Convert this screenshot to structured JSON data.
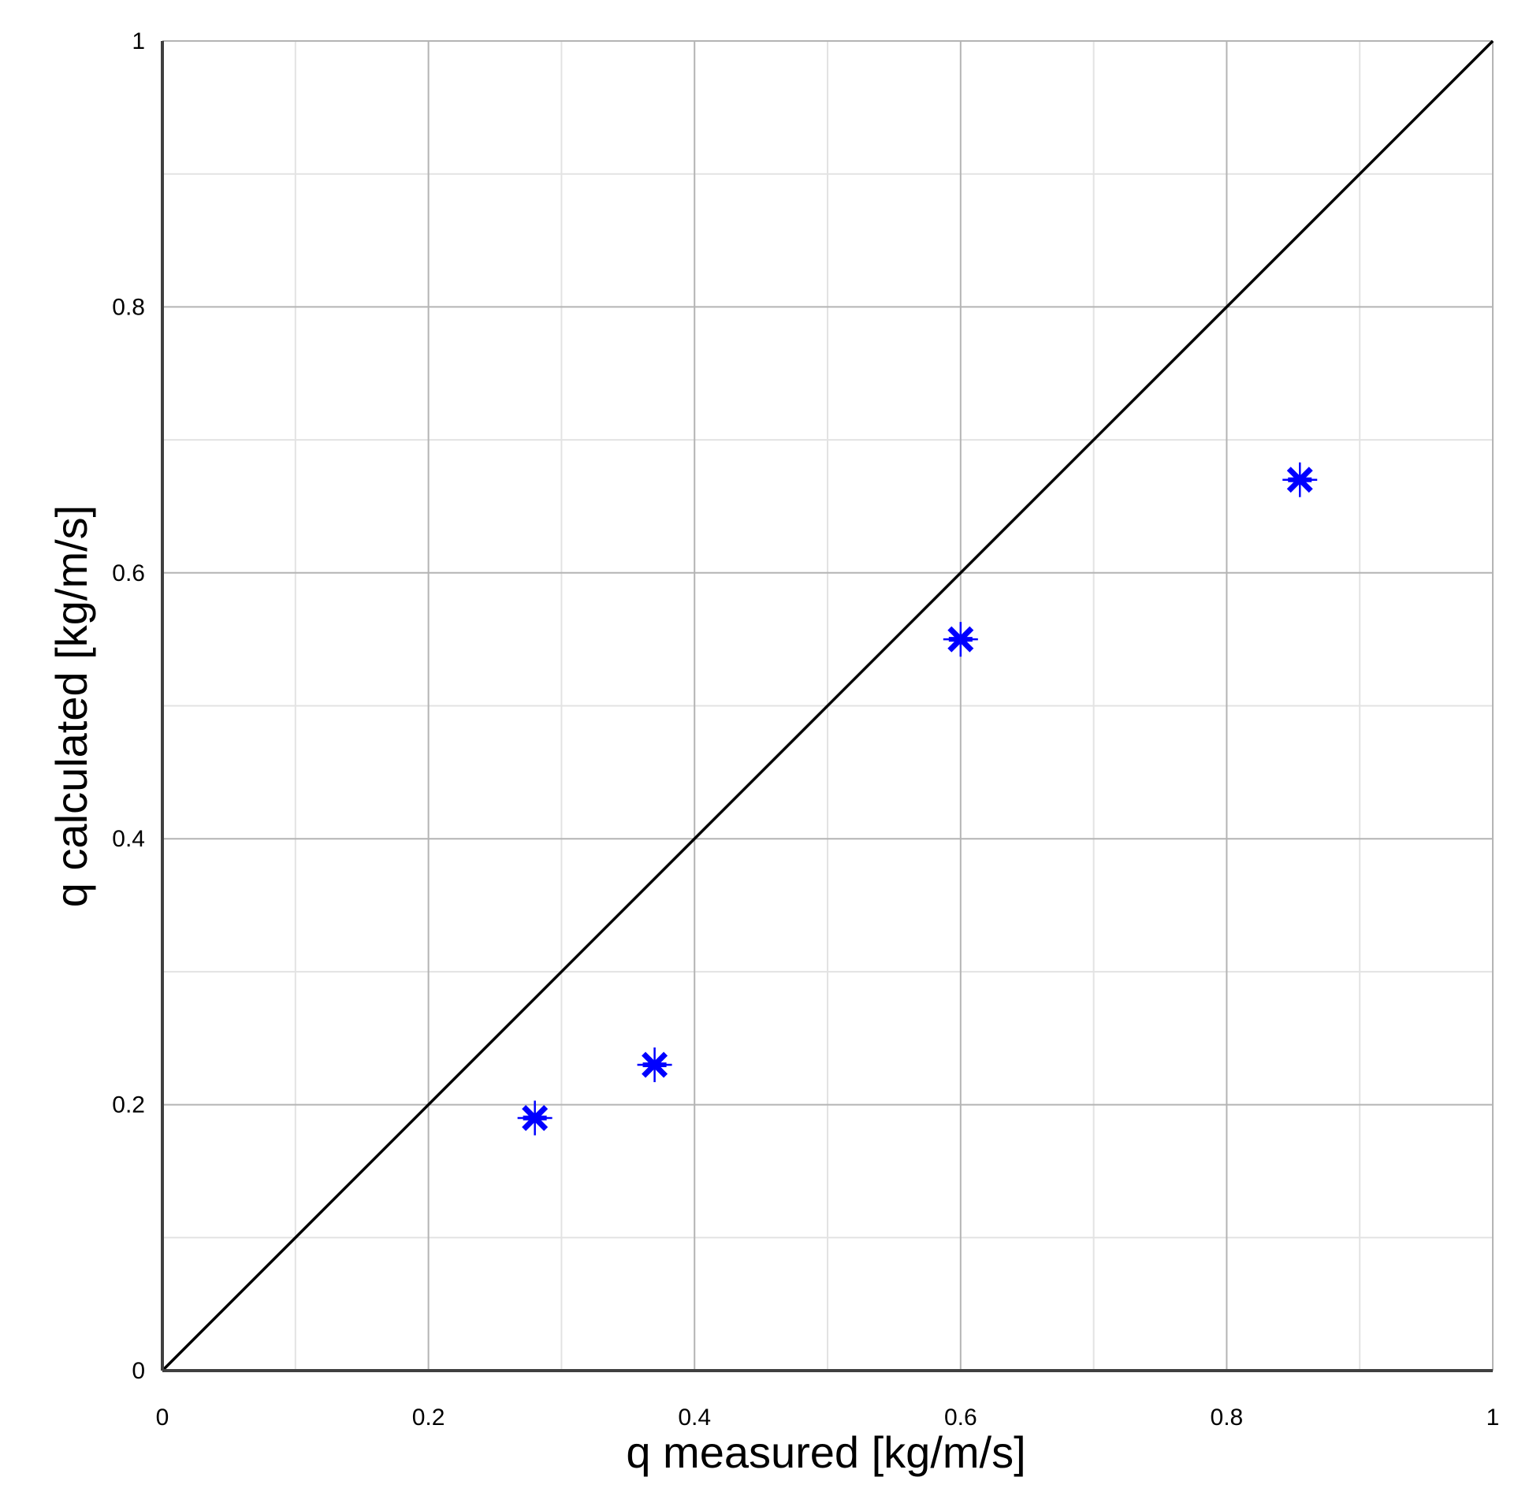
{
  "chart_data": {
    "type": "scatter",
    "title": "",
    "xlabel": "q measured [kg/m/s]",
    "ylabel": "q calculated [kg/m/s]",
    "xlim": [
      0,
      1
    ],
    "ylim": [
      0,
      1
    ],
    "x_ticks": [
      "0",
      "0.2",
      "0.4",
      "0.6",
      "0.8",
      "1"
    ],
    "y_ticks": [
      "0",
      "0.2",
      "0.4",
      "0.6",
      "0.8",
      "1"
    ],
    "major_tick_values": [
      0,
      0.2,
      0.4,
      0.6,
      0.8,
      1
    ],
    "minor_tick_values": [
      0.1,
      0.3,
      0.5,
      0.7,
      0.9
    ],
    "grid": true,
    "reference_line": {
      "from": [
        0,
        0
      ],
      "to": [
        1,
        1
      ],
      "color": "#000000"
    },
    "series": [
      {
        "marker": "asterisk",
        "color": "#0000ff",
        "points": [
          {
            "x": 0.28,
            "y": 0.19
          },
          {
            "x": 0.37,
            "y": 0.23
          },
          {
            "x": 0.6,
            "y": 0.55
          },
          {
            "x": 0.855,
            "y": 0.67
          }
        ]
      }
    ]
  }
}
